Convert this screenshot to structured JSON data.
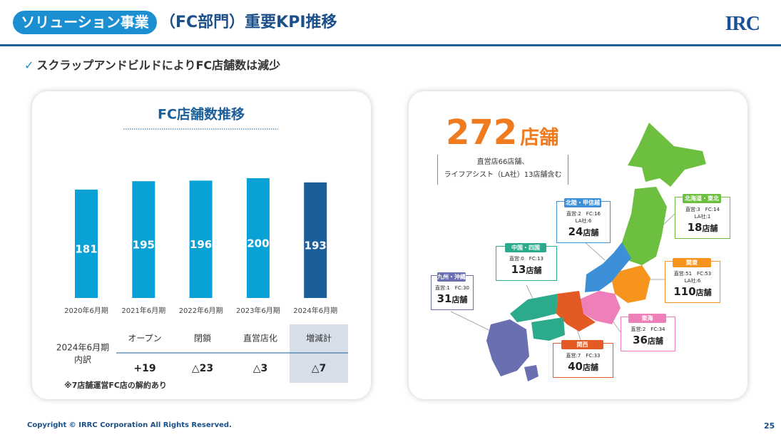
{
  "header": {
    "tag": "ソリューション事業",
    "title": "（FC部門）重要KPI推移",
    "logo": "IRC"
  },
  "bullet": "スクラップアンドビルドによりFC店舗数は減少",
  "chart_data": {
    "type": "bar",
    "title": "FC店舗数推移",
    "categories": [
      "2020年6月期",
      "2021年6月期",
      "2022年6月期",
      "2023年6月期",
      "2024年6月期"
    ],
    "values": [
      181,
      195,
      196,
      200,
      193
    ],
    "colors": [
      "#0aa2d4",
      "#0aa2d4",
      "#0aa2d4",
      "#0aa2d4",
      "#1a5e9a"
    ],
    "ylim": [
      0,
      200
    ]
  },
  "breakdown": {
    "label": [
      "2024年6月期",
      "内訳"
    ],
    "headers": [
      "オープン",
      "閉鎖",
      "直営店化",
      "増減計"
    ],
    "values": [
      "+19",
      "△23",
      "△3",
      "△7"
    ],
    "note": "※7店舗運営FC店の解約あり"
  },
  "map": {
    "total": "272",
    "unit": "店舗",
    "note": [
      "直営店66店舗、",
      "ライフアシスト（LA社）13店舗含む"
    ],
    "regions": [
      {
        "name": "北陸・甲信越",
        "lines": [
          "直営:2　FC:16",
          "LA社:6"
        ],
        "count": "24",
        "unit": "店舗",
        "color": "#3d8fd8"
      },
      {
        "name": "北海道・東北",
        "lines": [
          "直営:3　FC:14",
          "LA社:1"
        ],
        "count": "18",
        "unit": "店舗",
        "color": "#6cbf3f"
      },
      {
        "name": "中国・四国",
        "lines": [
          "直営:0　FC:13"
        ],
        "count": "13",
        "unit": "店舗",
        "color": "#2bab8c"
      },
      {
        "name": "関東",
        "lines": [
          "直営:51　FC:53",
          "LA社:6"
        ],
        "count": "110",
        "unit": "店舗",
        "color": "#f7941d"
      },
      {
        "name": "九州・沖縄",
        "lines": [
          "直営:1　FC:30"
        ],
        "count": "31",
        "unit": "店舗",
        "color": "#6a6fb0"
      },
      {
        "name": "東海",
        "lines": [
          "直営:2　FC:34"
        ],
        "count": "36",
        "unit": "店舗",
        "color": "#ef7fb8"
      },
      {
        "name": "関西",
        "lines": [
          "直営:7　FC:33"
        ],
        "count": "40",
        "unit": "店舗",
        "color": "#e35a24"
      }
    ]
  },
  "footer": {
    "copyright": "Copyright © IRRC Corporation All Rights Reserved.",
    "page": "25"
  }
}
